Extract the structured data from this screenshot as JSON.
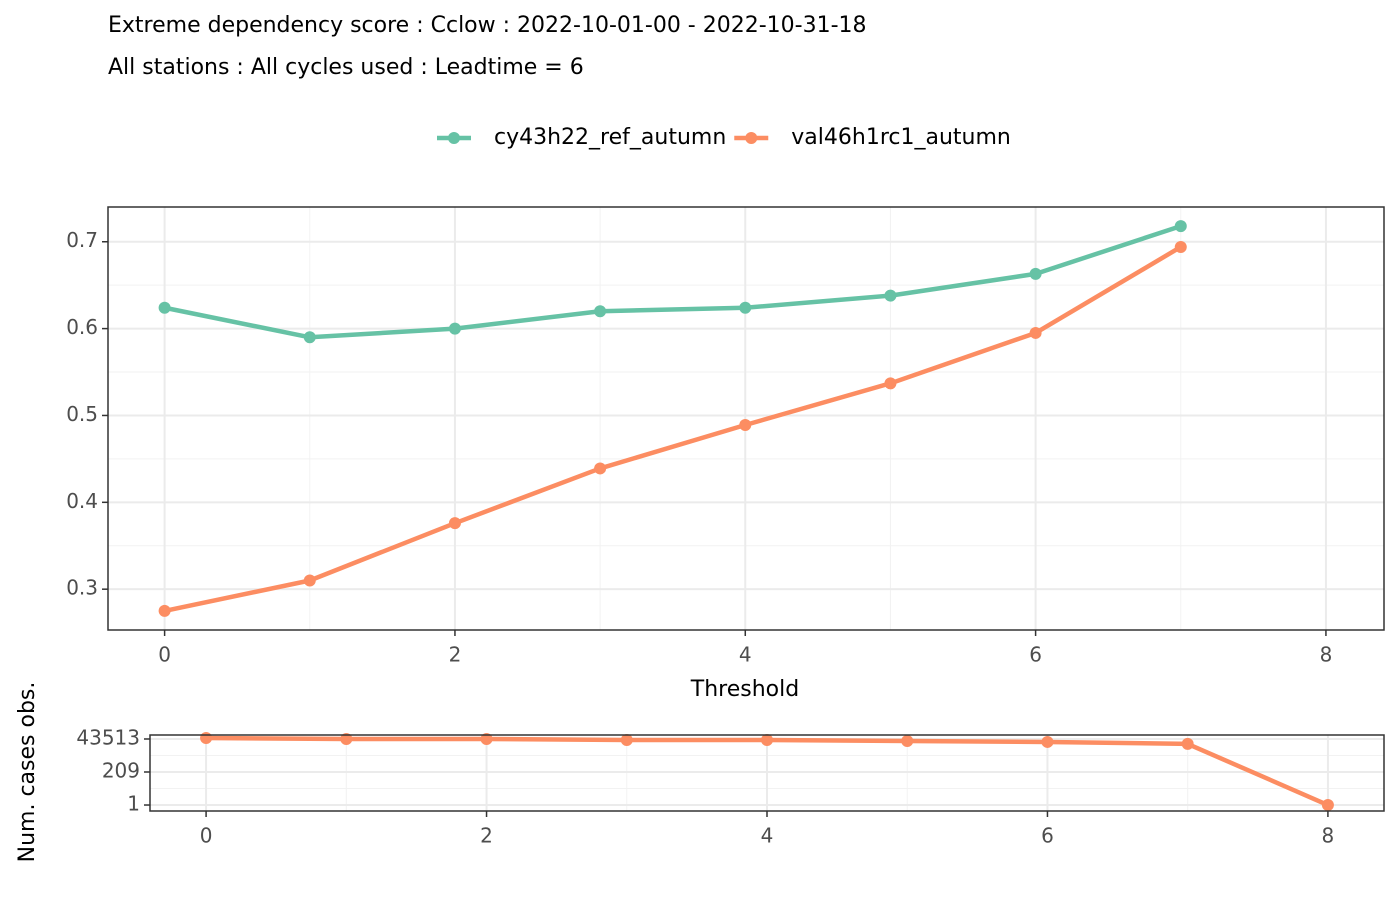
{
  "chart_data": [
    {
      "type": "line",
      "title": "Extreme dependency score : Cclow : 2022-10-01-00 - 2022-10-31-18",
      "subtitle": "All stations : All cycles used : Leadtime = 6",
      "x_label": "Threshold",
      "x": [
        0,
        1,
        2,
        3,
        4,
        5,
        6,
        7
      ],
      "series": [
        {
          "name": "cy43h22_ref_autumn",
          "color": "#66c2a5",
          "values": [
            0.624,
            0.59,
            0.6,
            0.62,
            0.624,
            0.638,
            0.663,
            0.718
          ]
        },
        {
          "name": "val46h1rc1_autumn",
          "color": "#fc8d62",
          "values": [
            0.275,
            0.31,
            0.376,
            0.439,
            0.489,
            0.537,
            0.595,
            0.694
          ]
        }
      ],
      "xlim": [
        -0.39,
        8.4
      ],
      "xticks": [
        0,
        2,
        4,
        6,
        8
      ],
      "ylim": [
        0.253,
        0.74
      ],
      "yticks": [
        0.3,
        0.4,
        0.5,
        0.6,
        0.7
      ],
      "grid": true,
      "legend": "top"
    },
    {
      "type": "line",
      "y_label": "Num. cases obs.",
      "x": [
        0,
        1,
        2,
        3,
        4,
        5,
        6,
        7,
        8
      ],
      "values": [
        51000,
        43513,
        43513,
        37000,
        37000,
        31700,
        27000,
        19600,
        1
      ],
      "color": "#fc8d62",
      "xlim": [
        -0.4,
        8.4
      ],
      "xticks": [
        0,
        2,
        4,
        6,
        8
      ],
      "ylim": [
        0.38,
        83000
      ],
      "yticks": [
        1,
        209,
        43513
      ],
      "log_y": true,
      "grid": true
    }
  ]
}
